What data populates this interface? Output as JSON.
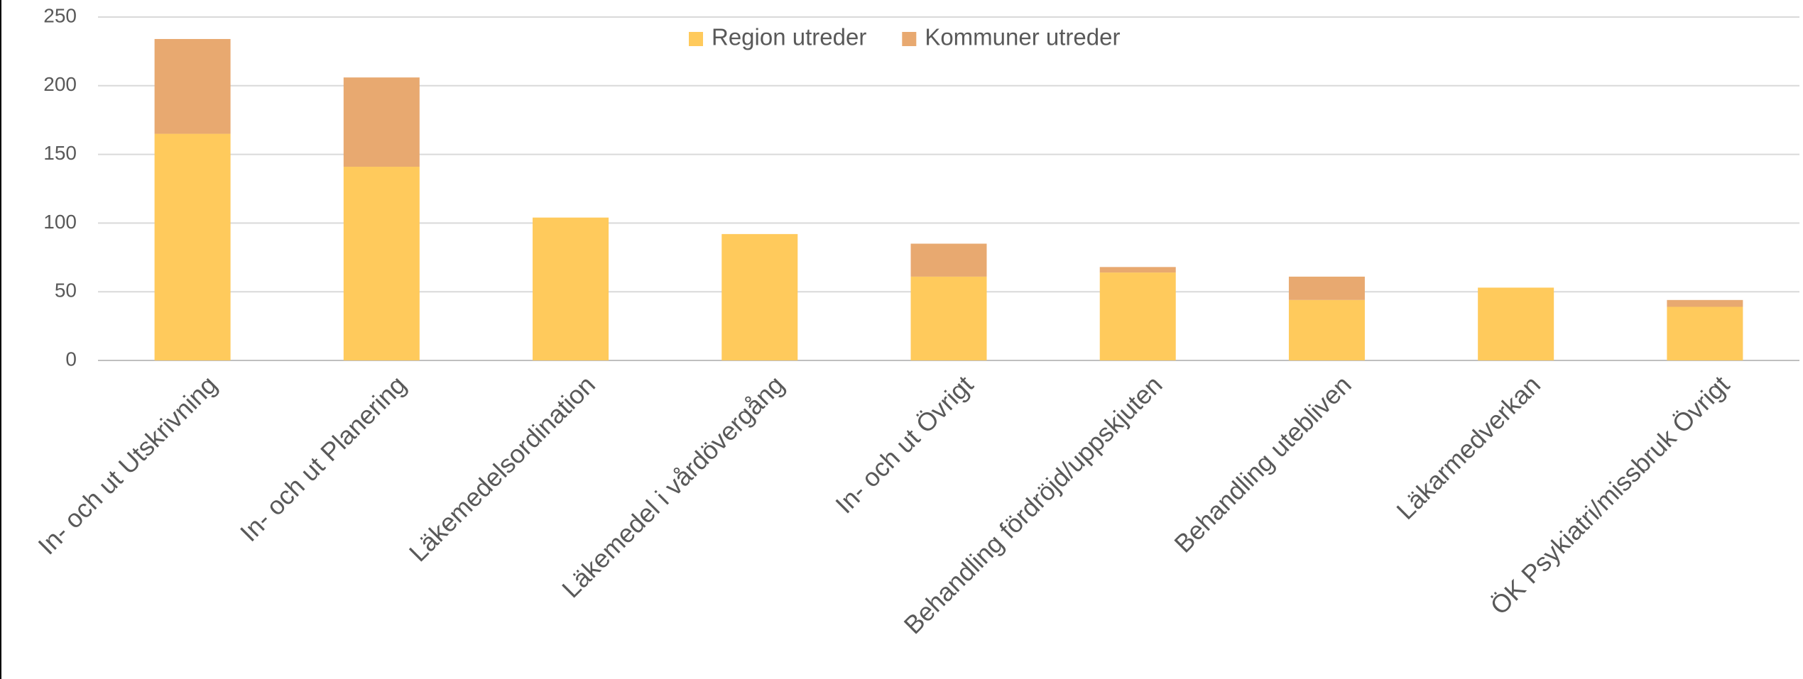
{
  "chart_data": {
    "type": "bar",
    "stacked": true,
    "categories": [
      "In- och ut Utskrivning",
      "In- och ut Planering",
      "Läkemedelsordination",
      "Läkemedel i vårdövergång",
      "In- och ut Övrigt",
      "Behandling fördröjd/uppskjuten",
      "Behandling utebliven",
      "Läkarmedverkan",
      "ÖK Psykiatri/missbruk Övrigt"
    ],
    "series": [
      {
        "name": "Region utreder",
        "color": "#ffca5c",
        "values": [
          165,
          141,
          104,
          92,
          61,
          64,
          44,
          53,
          39
        ]
      },
      {
        "name": "Kommuner utreder",
        "color": "#e8a970",
        "values": [
          69,
          65,
          0,
          0,
          24,
          4,
          17,
          0,
          5
        ]
      }
    ],
    "ylim": [
      0,
      250
    ],
    "yticks": [
      0,
      50,
      100,
      150,
      200,
      250
    ],
    "grid": true,
    "legend": "top"
  }
}
